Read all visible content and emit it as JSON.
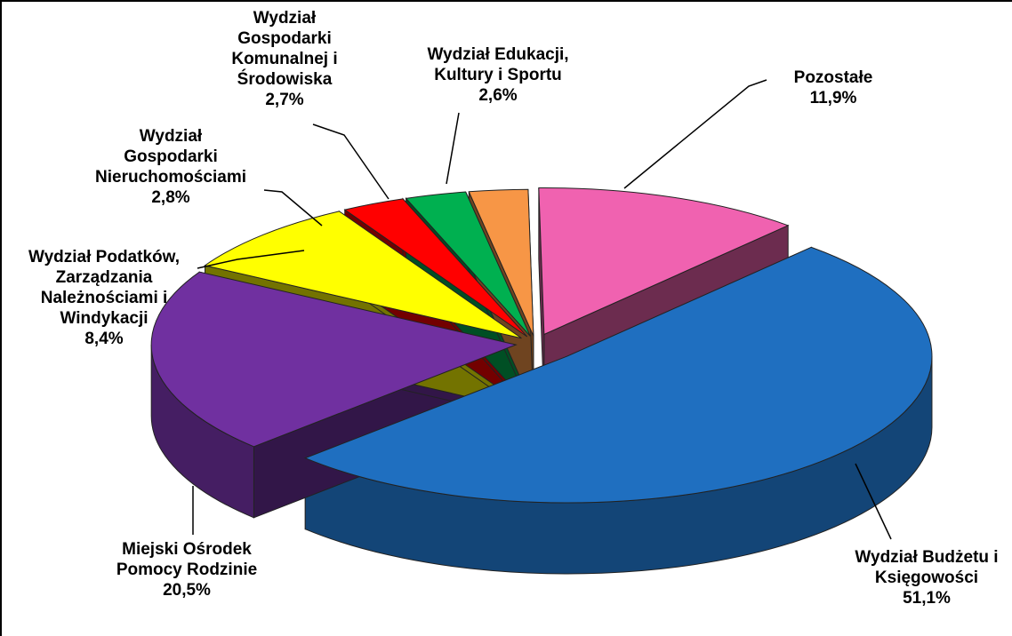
{
  "chart_data": {
    "type": "pie3d",
    "categories": [
      "Wydział Budżetu i\nKsięgowości",
      "Miejski Ośrodek\nPomocy Rodzinie",
      "Wydział Podatków,\nZarządzania\nNależnościami i\nWindykacji",
      "Wydział\nGospodarki\nNieruchomościami",
      "Wydział\nGospodarki\nKomunalnej i\nŚrodowiska",
      "Wydział Edukacji,\nKultury i Sportu",
      "Pozostałe"
    ],
    "values": [
      51.1,
      20.5,
      8.4,
      2.8,
      2.7,
      2.6,
      11.9
    ],
    "value_labels": [
      "51,1%",
      "20,5%",
      "8,4%",
      "2,8%",
      "2,7%",
      "2,6%",
      "11,9%"
    ],
    "colors": [
      "#1f6fc0",
      "#7030a0",
      "#ffff00",
      "#ff0000",
      "#00b050",
      "#f79646",
      "#f062b0"
    ]
  }
}
